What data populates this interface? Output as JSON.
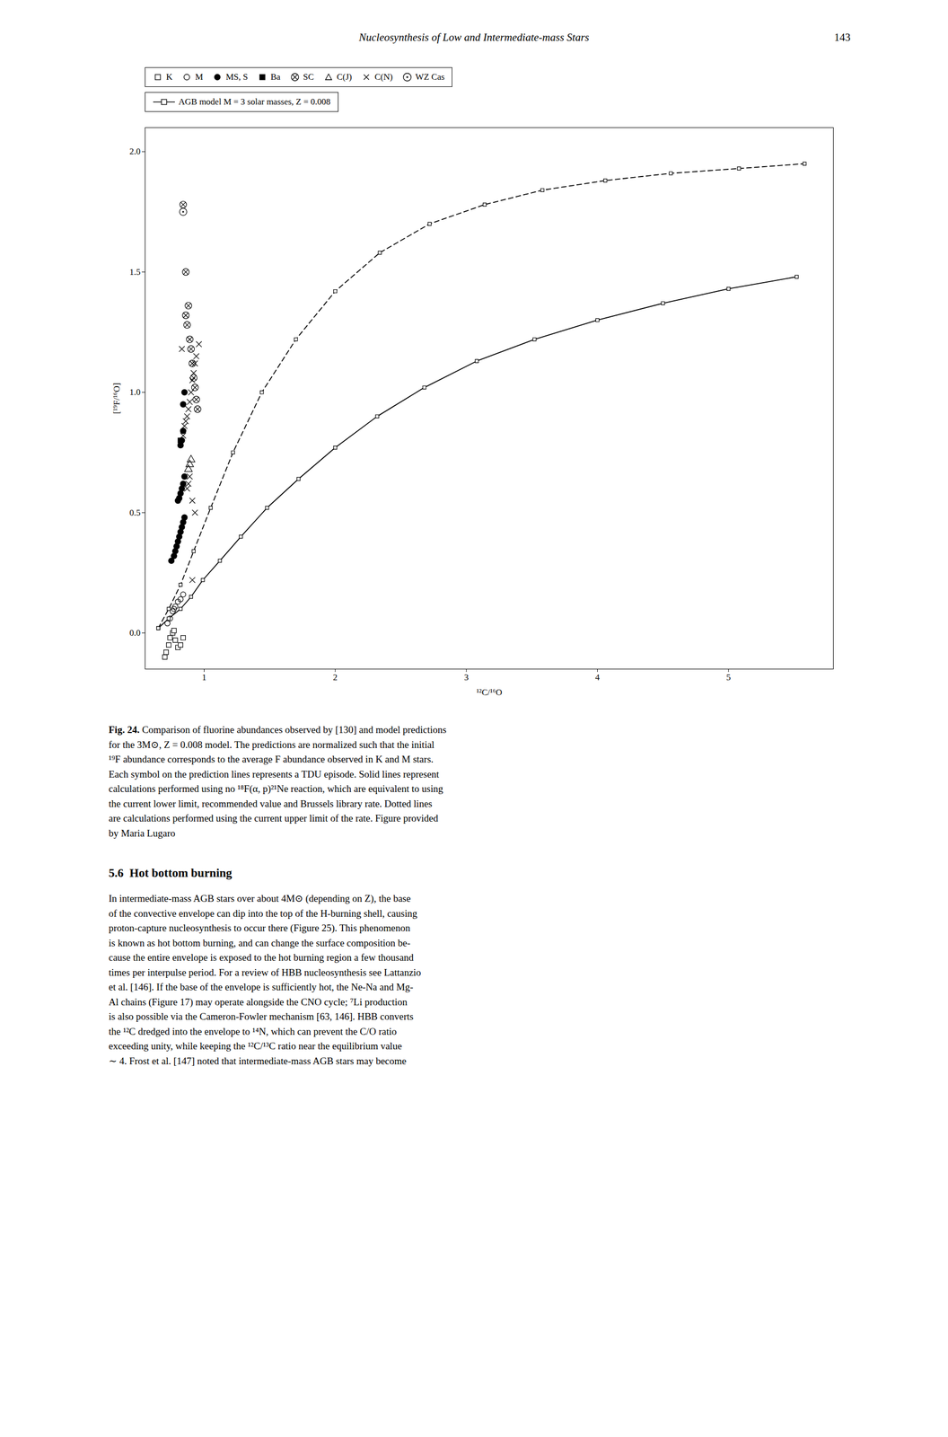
{
  "chart_data": {
    "type": "scatter",
    "title": "Nucleosynthesis of Low and Intermediate-mass Stars",
    "annotations": [
      "143",
      "Fig. 24.",
      "Comparison of fluorine abundances observed by [130] and model predictions\nfor the 3M⊙, Z = 0.008 model. The predictions are normalized such that the initial\n¹⁹F abundance corresponds to the average F abundance observed in K and M stars.\nEach symbol on the prediction lines represents a TDU episode. Solid lines represent\ncalculations performed using no ¹⁸F(α, p)²¹Ne reaction, which are equivalent to using\nthe current lower limit, recommended value and Brussels library rate. Dotted lines\nare calculations performed using the current upper limit of the rate. Figure provided\nby Maria Lugaro",
      "5.6  Hot bottom burning",
      "In intermediate-mass AGB stars over about 4M⊙ (depending on Z), the base\nof the convective envelope can dip into the top of the H-burning shell, causing\nproton-capture nucleosynthesis to occur there (Figure 25). This phenomenon\nis known as hot bottom burning, and can change the surface composition be-\ncause the entire envelope is exposed to the hot burning region a few thousand\ntimes per interpulse period. For a review of HBB nucleosynthesis see Lattanzio\net al. [146]. If the base of the envelope is sufficiently hot, the Ne-Na and Mg-\nAl chains (Figure 17) may operate alongside the CNO cycle; ⁷Li production\nis also possible via the Cameron-Fowler mechanism [63, 146]. HBB converts\nthe ¹²C dredged into the envelope to ¹⁴N, which can prevent the C/O ratio\nexceeding unity, while keeping the ¹²C/¹³C ratio near the equilibrium value\n∼ 4. Frost et al. [147] noted that intermediate-mass AGB stars may become"
    ],
    "xlabel": "¹²C/¹⁶O",
    "ylabel": "[¹⁹F/¹⁶O]",
    "xlim": [
      0.55,
      5.8
    ],
    "ylim": [
      -0.15,
      2.1
    ],
    "xticks": [
      1,
      2,
      3,
      4,
      5
    ],
    "yticks": [
      {
        "value": 0,
        "label": "0.0"
      },
      0.5,
      {
        "value": 1.0,
        "label": "1.0"
      },
      1.5,
      {
        "value": 2.0,
        "label": "2.0"
      }
    ],
    "grid": false,
    "legend": "upper left",
    "series": [
      {
        "name": "K",
        "type": "scatter",
        "marker": "square-open",
        "values": [
          [
            0.71,
            -0.08
          ],
          [
            0.73,
            -0.05
          ],
          [
            0.74,
            -0.02
          ],
          [
            0.76,
            0.0
          ],
          [
            0.77,
            0.01
          ],
          [
            0.78,
            -0.03
          ],
          [
            0.8,
            -0.06
          ],
          [
            0.82,
            -0.05
          ],
          [
            0.84,
            -0.02
          ],
          [
            0.7,
            -0.1
          ]
        ]
      },
      {
        "name": "M",
        "type": "scatter",
        "marker": "circle-open",
        "values": [
          [
            0.72,
            0.04
          ],
          [
            0.74,
            0.06
          ],
          [
            0.76,
            0.09
          ],
          [
            0.77,
            0.1
          ],
          [
            0.78,
            0.11
          ],
          [
            0.8,
            0.13
          ],
          [
            0.82,
            0.14
          ],
          [
            0.84,
            0.16
          ]
        ]
      },
      {
        "name": "MS, S",
        "type": "scatter",
        "marker": "circle",
        "values": [
          [
            0.75,
            0.3
          ],
          [
            0.77,
            0.32
          ],
          [
            0.78,
            0.34
          ],
          [
            0.79,
            0.36
          ],
          [
            0.8,
            0.38
          ],
          [
            0.81,
            0.4
          ],
          [
            0.82,
            0.42
          ],
          [
            0.83,
            0.44
          ],
          [
            0.84,
            0.46
          ],
          [
            0.85,
            0.48
          ],
          [
            0.8,
            0.55
          ],
          [
            0.81,
            0.56
          ],
          [
            0.82,
            0.58
          ],
          [
            0.83,
            0.6
          ],
          [
            0.84,
            0.62
          ],
          [
            0.85,
            0.65
          ],
          [
            0.82,
            0.78
          ],
          [
            0.83,
            0.8
          ],
          [
            0.84,
            0.84
          ],
          [
            0.84,
            0.95
          ],
          [
            0.85,
            1.0
          ]
        ]
      },
      {
        "name": "Ba",
        "type": "scatter",
        "marker": "square",
        "values": [
          [
            0.82,
            0.8
          ]
        ]
      },
      {
        "name": "SC",
        "type": "scatter",
        "marker": "circled-x",
        "values": [
          [
            0.84,
            1.78
          ],
          [
            0.86,
            1.5
          ],
          [
            0.86,
            1.32
          ],
          [
            0.87,
            1.28
          ],
          [
            0.88,
            1.36
          ],
          [
            0.89,
            1.22
          ],
          [
            0.9,
            1.18
          ],
          [
            0.91,
            1.12
          ],
          [
            0.92,
            1.06
          ],
          [
            0.93,
            1.02
          ],
          [
            0.94,
            0.97
          ],
          [
            0.95,
            0.93
          ]
        ]
      },
      {
        "name": "C(J)",
        "type": "scatter",
        "marker": "triangle-open",
        "values": [
          [
            0.88,
            0.68
          ],
          [
            0.89,
            0.7
          ],
          [
            0.9,
            0.72
          ]
        ]
      },
      {
        "name": "C(N)",
        "type": "scatter",
        "marker": "x",
        "values": [
          [
            0.84,
            0.82
          ],
          [
            0.85,
            0.86
          ],
          [
            0.86,
            0.88
          ],
          [
            0.87,
            0.9
          ],
          [
            0.88,
            0.93
          ],
          [
            0.89,
            0.96
          ],
          [
            0.9,
            1.0
          ],
          [
            0.91,
            1.05
          ],
          [
            0.92,
            1.08
          ],
          [
            0.93,
            1.12
          ],
          [
            0.94,
            1.15
          ],
          [
            0.96,
            1.2
          ],
          [
            0.87,
            0.6
          ],
          [
            0.89,
            0.65
          ],
          [
            0.88,
            0.62
          ],
          [
            0.91,
            0.55
          ],
          [
            0.93,
            0.5
          ],
          [
            0.91,
            0.22
          ],
          [
            0.83,
            1.18
          ]
        ]
      },
      {
        "name": "WZ Cas",
        "type": "scatter",
        "marker": "circled-dot",
        "values": [
          [
            0.84,
            1.75
          ]
        ]
      },
      {
        "name": "AGB model M = 3 solar masses, Z = 0.008",
        "type": "line",
        "marker": "square-open",
        "line_style": "solid",
        "values": [
          [
            0.65,
            0.02
          ],
          [
            0.73,
            0.06
          ],
          [
            0.82,
            0.1
          ],
          [
            0.9,
            0.15
          ],
          [
            0.99,
            0.22
          ],
          [
            1.12,
            0.3
          ],
          [
            1.28,
            0.4
          ],
          [
            1.48,
            0.52
          ],
          [
            1.72,
            0.64
          ],
          [
            2.0,
            0.77
          ],
          [
            2.32,
            0.9
          ],
          [
            2.68,
            1.02
          ],
          [
            3.08,
            1.13
          ],
          [
            3.52,
            1.22
          ],
          [
            4.0,
            1.3
          ],
          [
            4.5,
            1.37
          ],
          [
            5.0,
            1.43
          ],
          [
            5.52,
            1.48
          ]
        ]
      },
      {
        "name": null,
        "type": "line",
        "marker": "square-open",
        "line_style": "dashed",
        "values": [
          [
            0.65,
            0.02
          ],
          [
            0.73,
            0.1
          ],
          [
            0.82,
            0.2
          ],
          [
            0.92,
            0.34
          ],
          [
            1.05,
            0.52
          ],
          [
            1.22,
            0.75
          ],
          [
            1.44,
            1.0
          ],
          [
            1.7,
            1.22
          ],
          [
            2.0,
            1.42
          ],
          [
            2.34,
            1.58
          ],
          [
            2.72,
            1.7
          ],
          [
            3.14,
            1.78
          ],
          [
            3.58,
            1.84
          ],
          [
            4.06,
            1.88
          ],
          [
            4.56,
            1.91
          ],
          [
            5.08,
            1.93
          ],
          [
            5.58,
            1.95
          ]
        ]
      }
    ]
  }
}
